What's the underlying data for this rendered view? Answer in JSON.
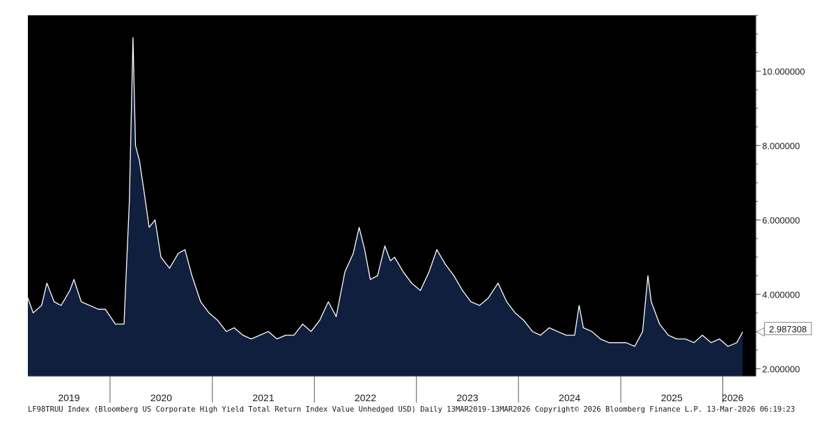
{
  "chart_data": {
    "type": "area",
    "x_range": [
      "2019-03-13",
      "2026-03-13"
    ],
    "ylim": [
      1.8,
      11.5
    ],
    "y_ticks": [
      {
        "value": 2,
        "label": "2.000000"
      },
      {
        "value": 4,
        "label": "4.000000"
      },
      {
        "value": 6,
        "label": "6.000000"
      },
      {
        "value": 8,
        "label": "8.000000"
      },
      {
        "value": 10,
        "label": "10.000000"
      }
    ],
    "x_year_labels": [
      "2019",
      "2020",
      "2021",
      "2022",
      "2023",
      "2024",
      "2025",
      "2026"
    ],
    "last_value": "2.987308",
    "grid": false,
    "colors": {
      "background": "#000000",
      "fill": "#0f1f3d",
      "line": "#ffffff"
    },
    "series": [
      {
        "x": [
          "2019-03-13",
          "2019-04-01",
          "2019-05-01",
          "2019-05-20",
          "2019-06-15",
          "2019-07-10",
          "2019-08-10",
          "2019-08-25",
          "2019-09-20",
          "2019-10-20",
          "2019-11-20",
          "2019-12-15",
          "2020-01-20",
          "2020-02-20",
          "2020-03-10",
          "2020-03-23",
          "2020-04-01",
          "2020-04-15",
          "2020-05-01",
          "2020-05-20",
          "2020-06-10",
          "2020-07-01",
          "2020-08-01",
          "2020-09-01",
          "2020-09-25",
          "2020-10-20",
          "2020-11-20",
          "2020-12-20",
          "2021-01-20",
          "2021-02-20",
          "2021-03-20",
          "2021-04-20",
          "2021-05-20",
          "2021-06-20",
          "2021-07-20",
          "2021-08-20",
          "2021-09-20",
          "2021-10-20",
          "2021-11-20",
          "2021-12-20",
          "2022-01-20",
          "2022-02-20",
          "2022-03-20",
          "2022-04-20",
          "2022-05-20",
          "2022-06-10",
          "2022-06-30",
          "2022-07-20",
          "2022-08-15",
          "2022-09-10",
          "2022-09-30",
          "2022-10-15",
          "2022-11-15",
          "2022-12-15",
          "2023-01-15",
          "2023-02-15",
          "2023-03-15",
          "2023-04-15",
          "2023-05-15",
          "2023-06-15",
          "2023-07-15",
          "2023-08-15",
          "2023-09-15",
          "2023-10-20",
          "2023-11-20",
          "2023-12-20",
          "2024-01-20",
          "2024-02-20",
          "2024-03-20",
          "2024-04-20",
          "2024-05-20",
          "2024-06-20",
          "2024-07-20",
          "2024-08-05",
          "2024-08-20",
          "2024-09-20",
          "2024-10-20",
          "2024-11-20",
          "2024-12-20",
          "2025-01-20",
          "2025-02-20",
          "2025-03-20",
          "2025-04-08",
          "2025-04-20",
          "2025-05-20",
          "2025-06-20",
          "2025-07-20",
          "2025-08-20",
          "2025-09-20",
          "2025-10-20",
          "2025-11-20",
          "2025-12-20",
          "2026-01-20",
          "2026-02-20",
          "2026-03-13"
        ],
        "y": [
          3.9,
          3.5,
          3.7,
          4.3,
          3.8,
          3.7,
          4.1,
          4.4,
          3.8,
          3.7,
          3.6,
          3.6,
          3.2,
          3.2,
          6.5,
          10.9,
          8.0,
          7.6,
          6.8,
          5.8,
          6.0,
          5.0,
          4.7,
          5.1,
          5.2,
          4.5,
          3.8,
          3.5,
          3.3,
          3.0,
          3.1,
          2.9,
          2.8,
          2.9,
          3.0,
          2.8,
          2.9,
          2.9,
          3.2,
          3.0,
          3.3,
          3.8,
          3.4,
          4.6,
          5.1,
          5.8,
          5.2,
          4.4,
          4.5,
          5.3,
          4.9,
          5.0,
          4.6,
          4.3,
          4.1,
          4.6,
          5.2,
          4.8,
          4.5,
          4.1,
          3.8,
          3.7,
          3.9,
          4.3,
          3.8,
          3.5,
          3.3,
          3.0,
          2.9,
          3.1,
          3.0,
          2.9,
          2.9,
          3.7,
          3.1,
          3.0,
          2.8,
          2.7,
          2.7,
          2.7,
          2.6,
          3.0,
          4.5,
          3.8,
          3.2,
          2.9,
          2.8,
          2.8,
          2.7,
          2.9,
          2.7,
          2.8,
          2.6,
          2.7,
          2.99
        ]
      }
    ]
  },
  "footer": {
    "text": "LF98TRUU Index (Bloomberg US Corporate High Yield Total Return Index Value Unhedged USD) Daily 13MAR2019-13MAR2026  Copyright© 2026 Bloomberg Finance L.P.  13-Mar-2026 06:19:23"
  }
}
